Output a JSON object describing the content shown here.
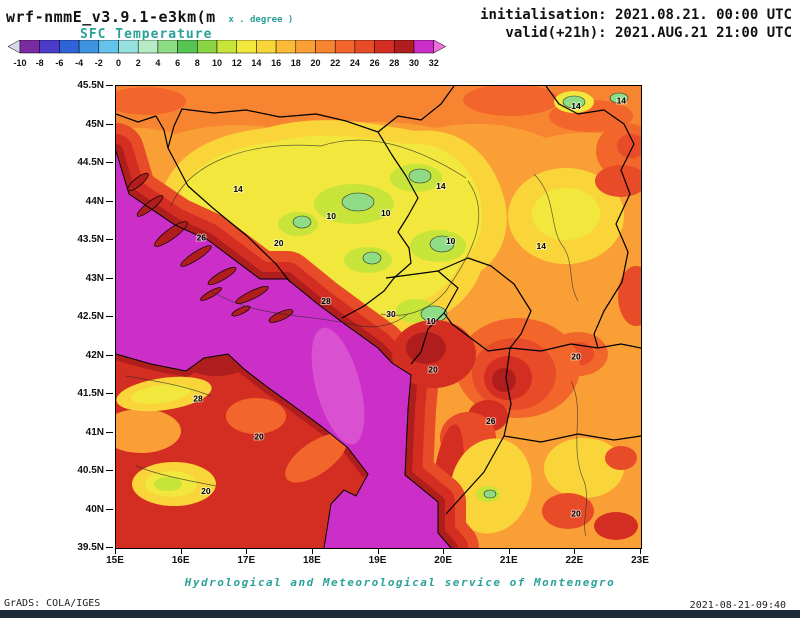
{
  "header": {
    "model_title": "wrf-nmmE_v3.9.1-e3km(m",
    "model_units": "x . degree )",
    "field_label": "SFC Temperature",
    "init_label": "initialisation: 2021.08.21. 00:00 UTC",
    "valid_label": "valid(+21h): 2021.AUG.21 21:00 UTC"
  },
  "footer": {
    "service_line": "Hydrological and Meteorological service of Montenegro",
    "grads_credit": "GrADS: COLA/IGES",
    "timestamp": "2021-08-21-09:40"
  },
  "colors": {
    "accent_teal": "#2aa198",
    "frame": "#000000",
    "bottom_bar": "#1e2a38"
  },
  "chart_data": {
    "type": "heatmap",
    "title": "SFC Temperature",
    "units_hint": "degree",
    "x_axis": {
      "ticks": [
        "15E",
        "16E",
        "17E",
        "18E",
        "19E",
        "20E",
        "21E",
        "22E",
        "23E"
      ],
      "range_deg": [
        15,
        23
      ]
    },
    "y_axis": {
      "ticks": [
        "45.5N",
        "45N",
        "44.5N",
        "44N",
        "43.5N",
        "43N",
        "42.5N",
        "42N",
        "41.5N",
        "41N",
        "40.5N",
        "40N",
        "39.5N"
      ],
      "range_deg": [
        39.5,
        45.5
      ]
    },
    "colorbar": {
      "tick_values": [
        -10,
        -8,
        -6,
        -4,
        -2,
        0,
        2,
        4,
        6,
        8,
        10,
        12,
        14,
        16,
        18,
        20,
        22,
        24,
        26,
        28,
        30,
        32
      ],
      "cell_colors": [
        "#7a2ba2",
        "#4a3cc8",
        "#2f63d8",
        "#3f94e2",
        "#63c3e8",
        "#96e0df",
        "#b6edc6",
        "#8edc85",
        "#55c452",
        "#8ad443",
        "#c7e43a",
        "#f2e73c",
        "#f9d53a",
        "#fbbb38",
        "#f99f36",
        "#f78430",
        "#f3662b",
        "#e84b27",
        "#d42d22",
        "#b01d1d",
        "#cb2fc7"
      ],
      "below_color": "#d8d8e8",
      "above_color": "#ef6fd8"
    },
    "contour_labels": [
      {
        "value": 14,
        "lon": 16.86,
        "lat": 44.16
      },
      {
        "value": 10,
        "lon": 18.28,
        "lat": 43.81
      },
      {
        "value": 10,
        "lon": 19.11,
        "lat": 43.85
      },
      {
        "value": 14,
        "lon": 19.95,
        "lat": 44.2
      },
      {
        "value": 10,
        "lon": 20.1,
        "lat": 43.49
      },
      {
        "value": 10,
        "lon": 19.8,
        "lat": 42.45
      },
      {
        "value": 14,
        "lon": 21.48,
        "lat": 43.42
      },
      {
        "value": 14,
        "lon": 22.01,
        "lat": 45.24
      },
      {
        "value": 14,
        "lon": 22.7,
        "lat": 45.31
      },
      {
        "value": 26,
        "lon": 16.3,
        "lat": 43.53
      },
      {
        "value": 20,
        "lon": 17.48,
        "lat": 43.46
      },
      {
        "value": 28,
        "lon": 18.2,
        "lat": 42.71
      },
      {
        "value": 30,
        "lon": 19.19,
        "lat": 42.54
      },
      {
        "value": 20,
        "lon": 19.83,
        "lat": 41.82
      },
      {
        "value": 20,
        "lon": 22.01,
        "lat": 41.99
      },
      {
        "value": 28,
        "lon": 16.25,
        "lat": 41.44
      },
      {
        "value": 20,
        "lon": 17.18,
        "lat": 40.95
      },
      {
        "value": 20,
        "lon": 16.37,
        "lat": 40.24
      },
      {
        "value": 20,
        "lon": 22.01,
        "lat": 39.95
      },
      {
        "value": 26,
        "lon": 20.71,
        "lat": 41.15
      }
    ],
    "legend_position": "top"
  }
}
